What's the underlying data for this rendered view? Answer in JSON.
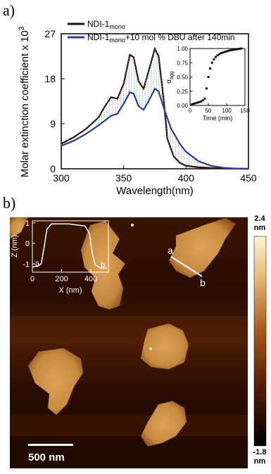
{
  "figure": {
    "panel_a_label": "a)",
    "panel_b_label": "b)"
  },
  "chart_data": [
    {
      "type": "line",
      "xlabel": "Wavelength(nm)",
      "ylabel": "Molar extinction coefficient x 10",
      "ylabel_sup": "3",
      "xlim": [
        300,
        450
      ],
      "ylim": [
        0,
        27
      ],
      "x_ticks": [
        "300",
        "350",
        "400",
        "450"
      ],
      "y_ticks": [
        "0",
        "9",
        "18",
        "27"
      ],
      "legend": [
        {
          "prefix": "NDI-1",
          "sub": "mono",
          "suffix": "",
          "color": "#111111"
        },
        {
          "prefix": "NDI-1",
          "sub": "mono",
          "suffix": "+10 mol % DBU after 140min",
          "color": "#2b3a8f"
        }
      ],
      "series": [
        {
          "name": "NDI-1mono",
          "color": "#111111",
          "points": [
            [
              300,
              5.0
            ],
            [
              310,
              6.3
            ],
            [
              320,
              8.0
            ],
            [
              330,
              10.3
            ],
            [
              335,
              12.5
            ],
            [
              340,
              14.3
            ],
            [
              345,
              14.0
            ],
            [
              350,
              17.0
            ],
            [
              355,
              22.8
            ],
            [
              358,
              22.3
            ],
            [
              362,
              17.5
            ],
            [
              366,
              16.0
            ],
            [
              370,
              19.5
            ],
            [
              375,
              24.0
            ],
            [
              378,
              22.5
            ],
            [
              382,
              14.0
            ],
            [
              385,
              6.0
            ],
            [
              390,
              2.5
            ],
            [
              395,
              1.2
            ],
            [
              400,
              0.6
            ],
            [
              410,
              0.3
            ],
            [
              420,
              0.15
            ],
            [
              430,
              0.05
            ],
            [
              450,
              0.0
            ]
          ]
        },
        {
          "name": "NDI-1mono+10 mol % DBU after 140min",
          "color": "#2b3a8f",
          "points": [
            [
              300,
              4.6
            ],
            [
              310,
              5.6
            ],
            [
              320,
              7.0
            ],
            [
              330,
              8.7
            ],
            [
              340,
              10.6
            ],
            [
              345,
              11.0
            ],
            [
              350,
              13.0
            ],
            [
              355,
              15.3
            ],
            [
              358,
              15.0
            ],
            [
              362,
              12.5
            ],
            [
              366,
              11.8
            ],
            [
              370,
              13.5
            ],
            [
              375,
              16.0
            ],
            [
              378,
              15.5
            ],
            [
              382,
              12.3
            ],
            [
              388,
              8.0
            ],
            [
              395,
              5.0
            ],
            [
              400,
              3.4
            ],
            [
              410,
              1.5
            ],
            [
              420,
              0.6
            ],
            [
              430,
              0.2
            ],
            [
              440,
              0.05
            ],
            [
              450,
              0.0
            ]
          ]
        }
      ]
    },
    {
      "type": "scatter",
      "xlabel": "Time (min)",
      "ylabel": "α",
      "ylabel_sub": "agg",
      "xlim": [
        0,
        150
      ],
      "ylim": [
        0,
        1.0
      ],
      "x_ticks": [
        "0",
        "50",
        "100",
        "150"
      ],
      "y_ticks": [
        "0.00",
        "0.25",
        "0.50",
        "0.75",
        "1.00"
      ],
      "series": [
        {
          "name": "",
          "color": "#111111",
          "points": [
            [
              5,
              0.02
            ],
            [
              10,
              0.03
            ],
            [
              15,
              0.04
            ],
            [
              20,
              0.05
            ],
            [
              25,
              0.06
            ],
            [
              30,
              0.07
            ],
            [
              35,
              0.09
            ],
            [
              40,
              0.12
            ],
            [
              45,
              0.3
            ],
            [
              50,
              0.5
            ],
            [
              55,
              0.65
            ],
            [
              60,
              0.75
            ],
            [
              65,
              0.81
            ],
            [
              70,
              0.85
            ],
            [
              75,
              0.88
            ],
            [
              80,
              0.9
            ],
            [
              85,
              0.92
            ],
            [
              90,
              0.93
            ],
            [
              95,
              0.94
            ],
            [
              100,
              0.95
            ],
            [
              105,
              0.96
            ],
            [
              110,
              0.97
            ],
            [
              115,
              0.975
            ],
            [
              120,
              0.98
            ],
            [
              125,
              0.985
            ],
            [
              130,
              0.99
            ],
            [
              135,
              0.995
            ],
            [
              140,
              1.0
            ]
          ]
        }
      ]
    },
    {
      "type": "line",
      "xlabel": "X (nm)",
      "ylabel": "Z (nm)",
      "xlim": [
        0,
        520
      ],
      "ylim": [
        -1.4,
        1.1
      ],
      "x_ticks": [
        "0",
        "200",
        "400"
      ],
      "y_ticks": [
        "-1",
        "0",
        "1"
      ],
      "markers": [
        "a",
        "b"
      ],
      "series": [
        {
          "name": "",
          "color": "#ffffff",
          "points": [
            [
              0,
              -1.15
            ],
            [
              40,
              -1.1
            ],
            [
              60,
              -1.0
            ],
            [
              80,
              -0.2
            ],
            [
              100,
              0.7
            ],
            [
              130,
              0.95
            ],
            [
              250,
              0.95
            ],
            [
              300,
              0.9
            ],
            [
              360,
              0.85
            ],
            [
              390,
              0.5
            ],
            [
              410,
              -0.5
            ],
            [
              430,
              -1.05
            ],
            [
              470,
              -1.2
            ],
            [
              510,
              -1.2
            ]
          ]
        }
      ]
    }
  ],
  "afm": {
    "scale_bar_label": "500 nm",
    "colorbar_max": "2.4",
    "colorbar_max_unit": "nm",
    "colorbar_min": "-1.8",
    "colorbar_min_unit": "nm",
    "line_markers": [
      "a",
      "b"
    ]
  }
}
